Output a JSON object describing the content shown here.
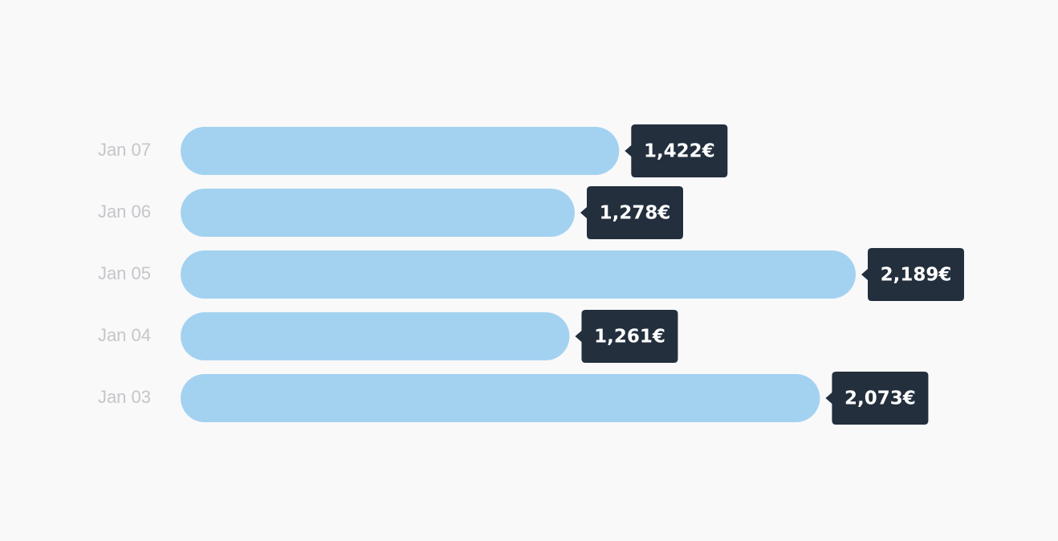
{
  "chart_data": {
    "type": "bar",
    "orientation": "horizontal",
    "categories": [
      "Jan 07",
      "Jan 06",
      "Jan 05",
      "Jan 04",
      "Jan 03"
    ],
    "values": [
      1422,
      1278,
      2189,
      1261,
      2073
    ],
    "value_labels": [
      "1,422€",
      "1,278€",
      "2,189€",
      "1,261€",
      "2,073€"
    ],
    "color": "#a3d2f1"
  }
}
